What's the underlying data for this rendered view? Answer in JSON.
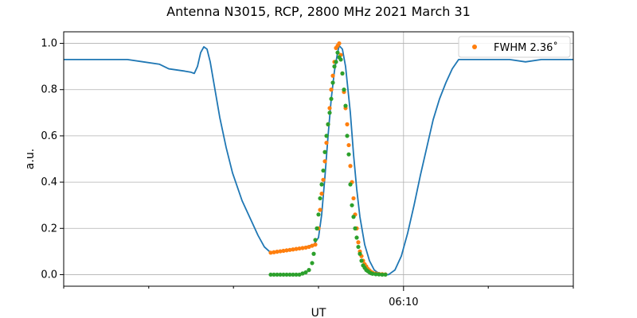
{
  "chart_data": {
    "type": "line",
    "title": "Antenna N3015, RCP, 2800 MHz 2021 March 31",
    "xlabel": "UT",
    "ylabel": "a.u.",
    "x_units": "minutes relative to 06:00 UT",
    "xlim": [
      -4.0,
      12.0
    ],
    "ylim": [
      -0.05,
      1.05
    ],
    "x_tick_labels": [
      {
        "x": 6.67,
        "label": "06:10"
      }
    ],
    "x_minor_ticks": [
      -4.0,
      -1.33,
      1.33,
      4.0,
      9.33,
      12.0
    ],
    "y_ticks": [
      0.0,
      0.2,
      0.4,
      0.6,
      0.8,
      1.0
    ],
    "y_tick_labels": [
      "0.0",
      "0.2",
      "0.4",
      "0.6",
      "0.8",
      "1.0"
    ],
    "grid": true,
    "legend": {
      "placement": "top-right",
      "entries": [
        "FWHM 2.36$^\\circ$"
      ],
      "display": [
        "FWHM 2.36˚"
      ]
    },
    "colors": {
      "line": "#1f77b4",
      "fit": "#ff7f0e",
      "sample": "#2ca02c",
      "grid": "#b0b0b0"
    },
    "series": [
      {
        "kind": "line",
        "color": "#1f77b4",
        "points": [
          [
            -4.0,
            0.93
          ],
          [
            -3.5,
            0.93
          ],
          [
            -3.0,
            0.93
          ],
          [
            -2.5,
            0.93
          ],
          [
            -2.0,
            0.93
          ],
          [
            -1.5,
            0.92
          ],
          [
            -1.0,
            0.91
          ],
          [
            -0.7,
            0.89
          ],
          [
            -0.2,
            0.88
          ],
          [
            0.0,
            0.875
          ],
          [
            0.1,
            0.87
          ],
          [
            0.2,
            0.9
          ],
          [
            0.3,
            0.96
          ],
          [
            0.4,
            0.985
          ],
          [
            0.5,
            0.975
          ],
          [
            0.6,
            0.92
          ],
          [
            0.75,
            0.8
          ],
          [
            0.9,
            0.68
          ],
          [
            1.1,
            0.55
          ],
          [
            1.3,
            0.44
          ],
          [
            1.6,
            0.32
          ],
          [
            1.9,
            0.23
          ],
          [
            2.1,
            0.17
          ],
          [
            2.3,
            0.12
          ],
          [
            2.5,
            0.095
          ],
          [
            2.9,
            0.1
          ],
          [
            3.3,
            0.11
          ],
          [
            3.6,
            0.12
          ],
          [
            3.85,
            0.13
          ],
          [
            4.0,
            0.16
          ],
          [
            4.1,
            0.26
          ],
          [
            4.2,
            0.42
          ],
          [
            4.3,
            0.6
          ],
          [
            4.4,
            0.76
          ],
          [
            4.5,
            0.88
          ],
          [
            4.6,
            0.96
          ],
          [
            4.65,
            0.99
          ],
          [
            4.75,
            0.975
          ],
          [
            4.85,
            0.9
          ],
          [
            5.0,
            0.7
          ],
          [
            5.1,
            0.52
          ],
          [
            5.2,
            0.37
          ],
          [
            5.3,
            0.25
          ],
          [
            5.45,
            0.13
          ],
          [
            5.6,
            0.06
          ],
          [
            5.75,
            0.02
          ],
          [
            5.9,
            0.005
          ],
          [
            6.1,
            0.0
          ],
          [
            6.2,
            0.0
          ],
          [
            6.4,
            0.02
          ],
          [
            6.6,
            0.08
          ],
          [
            6.8,
            0.18
          ],
          [
            7.0,
            0.3
          ],
          [
            7.2,
            0.43
          ],
          [
            7.4,
            0.55
          ],
          [
            7.6,
            0.67
          ],
          [
            7.8,
            0.76
          ],
          [
            8.0,
            0.83
          ],
          [
            8.2,
            0.89
          ],
          [
            8.4,
            0.93
          ],
          [
            8.8,
            0.93
          ],
          [
            9.3,
            0.93
          ],
          [
            10.0,
            0.93
          ],
          [
            10.5,
            0.92
          ],
          [
            11.0,
            0.93
          ],
          [
            11.5,
            0.93
          ],
          [
            12.0,
            0.93
          ]
        ]
      },
      {
        "kind": "scatter",
        "color": "#ff7f0e",
        "points": [
          [
            2.5,
            0.095
          ],
          [
            2.6,
            0.097
          ],
          [
            2.7,
            0.099
          ],
          [
            2.8,
            0.101
          ],
          [
            2.9,
            0.103
          ],
          [
            3.0,
            0.105
          ],
          [
            3.1,
            0.107
          ],
          [
            3.2,
            0.109
          ],
          [
            3.3,
            0.111
          ],
          [
            3.4,
            0.113
          ],
          [
            3.5,
            0.115
          ],
          [
            3.6,
            0.117
          ],
          [
            3.7,
            0.12
          ],
          [
            3.8,
            0.125
          ],
          [
            3.9,
            0.13
          ],
          [
            4.0,
            0.2
          ],
          [
            4.05,
            0.28
          ],
          [
            4.1,
            0.35
          ],
          [
            4.15,
            0.41
          ],
          [
            4.2,
            0.49
          ],
          [
            4.25,
            0.57
          ],
          [
            4.3,
            0.65
          ],
          [
            4.35,
            0.72
          ],
          [
            4.4,
            0.8
          ],
          [
            4.45,
            0.86
          ],
          [
            4.5,
            0.92
          ],
          [
            4.55,
            0.98
          ],
          [
            4.6,
            0.99
          ],
          [
            4.65,
            1.0
          ],
          [
            4.7,
            0.95
          ],
          [
            4.75,
            0.87
          ],
          [
            4.8,
            0.79
          ],
          [
            4.85,
            0.72
          ],
          [
            4.9,
            0.65
          ],
          [
            4.95,
            0.56
          ],
          [
            5.0,
            0.47
          ],
          [
            5.05,
            0.4
          ],
          [
            5.1,
            0.33
          ],
          [
            5.15,
            0.26
          ],
          [
            5.2,
            0.2
          ],
          [
            5.25,
            0.14
          ],
          [
            5.3,
            0.1
          ],
          [
            5.35,
            0.08
          ],
          [
            5.4,
            0.06
          ],
          [
            5.45,
            0.045
          ],
          [
            5.5,
            0.035
          ],
          [
            5.55,
            0.025
          ],
          [
            5.6,
            0.018
          ],
          [
            5.65,
            0.012
          ],
          [
            5.7,
            0.008
          ],
          [
            5.8,
            0.005
          ],
          [
            5.9,
            0.003
          ],
          [
            6.0,
            0.002
          ],
          [
            6.1,
            0.001
          ]
        ]
      },
      {
        "kind": "scatter",
        "color": "#2ca02c",
        "points": [
          [
            2.5,
            0.0
          ],
          [
            2.6,
            0.0
          ],
          [
            2.7,
            0.0
          ],
          [
            2.8,
            0.0
          ],
          [
            2.9,
            0.0
          ],
          [
            3.0,
            0.0
          ],
          [
            3.1,
            0.0
          ],
          [
            3.2,
            0.0
          ],
          [
            3.3,
            0.0
          ],
          [
            3.4,
            0.0
          ],
          [
            3.5,
            0.005
          ],
          [
            3.6,
            0.01
          ],
          [
            3.7,
            0.02
          ],
          [
            3.8,
            0.05
          ],
          [
            3.85,
            0.09
          ],
          [
            3.9,
            0.15
          ],
          [
            3.95,
            0.2
          ],
          [
            4.0,
            0.26
          ],
          [
            4.05,
            0.33
          ],
          [
            4.1,
            0.39
          ],
          [
            4.15,
            0.45
          ],
          [
            4.2,
            0.53
          ],
          [
            4.25,
            0.6
          ],
          [
            4.3,
            0.65
          ],
          [
            4.35,
            0.7
          ],
          [
            4.4,
            0.76
          ],
          [
            4.45,
            0.83
          ],
          [
            4.5,
            0.9
          ],
          [
            4.55,
            0.92
          ],
          [
            4.6,
            0.96
          ],
          [
            4.65,
            0.94
          ],
          [
            4.7,
            0.93
          ],
          [
            4.75,
            0.87
          ],
          [
            4.8,
            0.8
          ],
          [
            4.85,
            0.73
          ],
          [
            4.9,
            0.6
          ],
          [
            4.95,
            0.52
          ],
          [
            5.0,
            0.39
          ],
          [
            5.05,
            0.3
          ],
          [
            5.1,
            0.25
          ],
          [
            5.15,
            0.2
          ],
          [
            5.2,
            0.16
          ],
          [
            5.25,
            0.12
          ],
          [
            5.3,
            0.09
          ],
          [
            5.35,
            0.06
          ],
          [
            5.4,
            0.04
          ],
          [
            5.45,
            0.03
          ],
          [
            5.5,
            0.02
          ],
          [
            5.55,
            0.015
          ],
          [
            5.6,
            0.01
          ],
          [
            5.65,
            0.006
          ],
          [
            5.7,
            0.004
          ],
          [
            5.8,
            0.002
          ],
          [
            5.9,
            0.001
          ],
          [
            6.0,
            0.0
          ],
          [
            6.1,
            0.0
          ]
        ]
      }
    ]
  }
}
